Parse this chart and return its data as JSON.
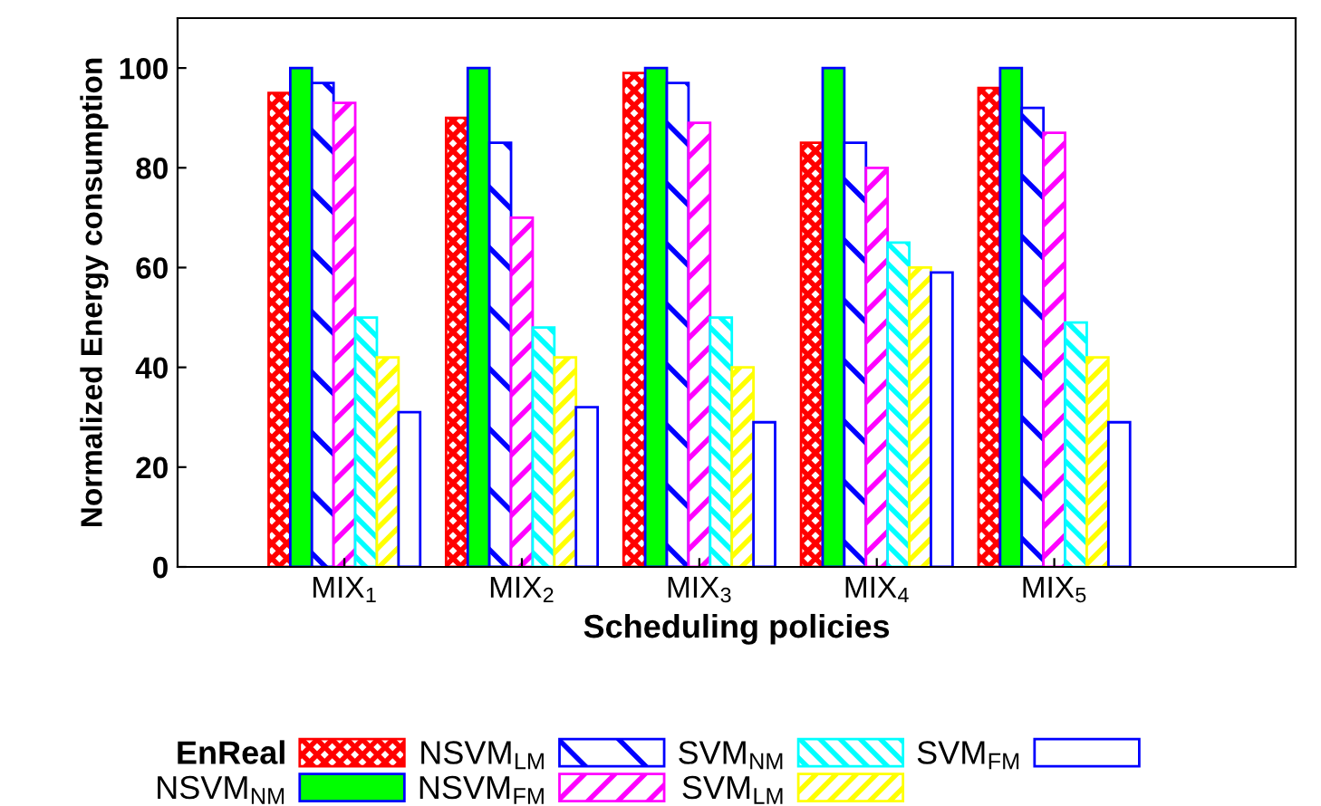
{
  "chart_data": {
    "type": "bar",
    "xlabel": "Scheduling policies",
    "ylabel": "Normalized Energy consumption",
    "categories": [
      "MIX$_{1}$",
      "MIX$_{2}$",
      "MIX$_{3}$",
      "MIX$_{4}$",
      "MIX$_{5}$"
    ],
    "series": [
      {
        "name": "EnReal",
        "color": "#ff0000",
        "values": [
          95,
          90,
          99,
          85,
          96
        ]
      },
      {
        "name": "NSVM$_{NM}$",
        "color": "#00ff00",
        "values": [
          100,
          100,
          100,
          100,
          100
        ]
      },
      {
        "name": "NSVM$_{LM}$",
        "color": "#0000ff",
        "values": [
          97,
          85,
          97,
          85,
          92
        ]
      },
      {
        "name": "NSVM$_{FM}$",
        "color": "#ff00ff",
        "values": [
          93,
          70,
          89,
          80,
          87
        ]
      },
      {
        "name": "SVM$_{NM}$",
        "color": "#00ffff",
        "values": [
          50,
          48,
          50,
          65,
          49
        ]
      },
      {
        "name": "SVM$_{LM}$",
        "color": "#ffff00",
        "values": [
          42,
          42,
          40,
          60,
          42
        ]
      },
      {
        "name": "SVM$_{FM}$",
        "color": "#0000ff",
        "values": [
          31,
          32,
          29,
          59,
          29
        ]
      }
    ],
    "ylim": [
      0,
      110
    ],
    "yticks": [
      0,
      20,
      40,
      60,
      80,
      100
    ],
    "grid": false,
    "legend": "bottom"
  }
}
